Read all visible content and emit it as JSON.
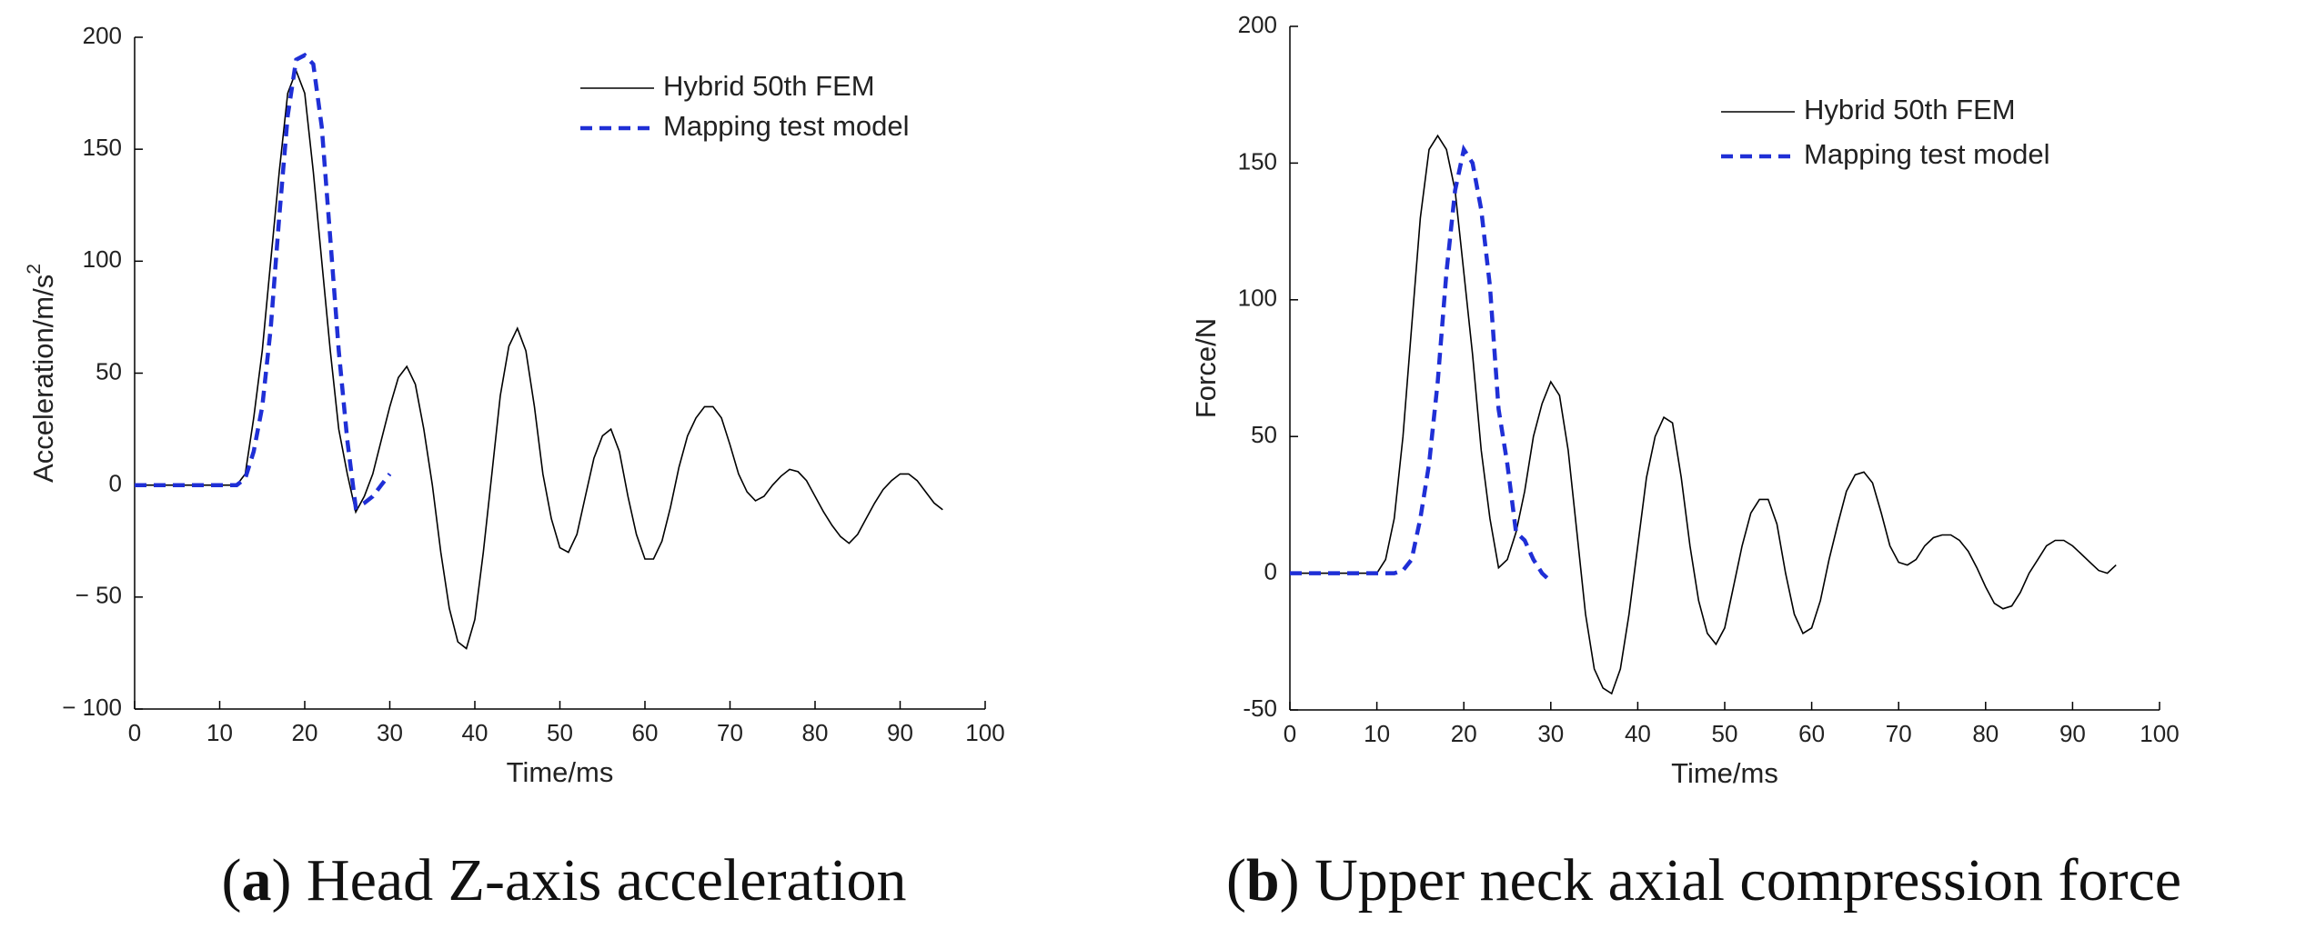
{
  "chart_data": [
    {
      "type": "line",
      "caption": [
        "(",
        "a",
        ") Head Z-axis acceleration"
      ],
      "xlabel": "Time/ms",
      "ylabel": [
        "Acceleration/m/s",
        "2"
      ],
      "xlim": [
        0,
        100
      ],
      "xticks": [
        0,
        10,
        20,
        30,
        40,
        50,
        60,
        70,
        80,
        90,
        100
      ],
      "ylim": [
        -100,
        200
      ],
      "yticks": [
        {
          "value": -100,
          "label": "− 100"
        },
        {
          "value": -50,
          "label": "− 50"
        },
        0,
        50,
        100,
        150,
        200
      ],
      "legend": "upper right",
      "series": [
        {
          "name": "Hybrid 50th FEM",
          "color": "#000000",
          "dash": false,
          "x": [
            0,
            1,
            2,
            3,
            4,
            5,
            6,
            7,
            8,
            9,
            10,
            11,
            12,
            13,
            14,
            15,
            16,
            17,
            18,
            19,
            20,
            21,
            22,
            23,
            24,
            25,
            26,
            27,
            28,
            29,
            30,
            31,
            32,
            33,
            34,
            35,
            36,
            37,
            38,
            39,
            40,
            41,
            42,
            43,
            44,
            45,
            46,
            47,
            48,
            49,
            50,
            51,
            52,
            53,
            54,
            55,
            56,
            57,
            58,
            59,
            60,
            61,
            62,
            63,
            64,
            65,
            66,
            67,
            68,
            69,
            70,
            71,
            72,
            73,
            74,
            75,
            76,
            77,
            78,
            79,
            80,
            81,
            82,
            83,
            84,
            85,
            86,
            87,
            88,
            89,
            90,
            91,
            92,
            93,
            94,
            95
          ],
          "values": [
            0,
            0,
            0,
            0,
            0,
            0,
            0,
            0,
            0,
            0,
            0,
            0,
            0,
            5,
            30,
            60,
            100,
            140,
            175,
            185,
            175,
            140,
            100,
            60,
            25,
            5,
            -12,
            -5,
            5,
            20,
            35,
            48,
            53,
            45,
            25,
            0,
            -30,
            -55,
            -70,
            -73,
            -60,
            -30,
            5,
            40,
            62,
            70,
            60,
            35,
            5,
            -15,
            -28,
            -30,
            -22,
            -5,
            12,
            22,
            25,
            15,
            -5,
            -22,
            -33,
            -33,
            -25,
            -10,
            8,
            22,
            30,
            35,
            35,
            30,
            18,
            5,
            -3,
            -7,
            -5,
            0,
            4,
            7,
            6,
            2,
            -5,
            -12,
            -18,
            -23,
            -26,
            -22,
            -15,
            -8,
            -2,
            2,
            5,
            5,
            2,
            -3,
            -8,
            -11
          ]
        },
        {
          "name": "Mapping test model",
          "color": "#1f2fd6",
          "dash": true,
          "x": [
            0,
            1,
            2,
            3,
            4,
            5,
            6,
            7,
            8,
            9,
            10,
            11,
            12,
            13,
            14,
            15,
            16,
            17,
            18,
            19,
            20,
            21,
            22,
            23,
            24,
            25,
            26,
            27,
            28,
            29,
            30
          ],
          "values": [
            0,
            0,
            0,
            0,
            0,
            0,
            0,
            0,
            0,
            0,
            0,
            0,
            0,
            3,
            15,
            35,
            70,
            120,
            165,
            190,
            192,
            188,
            160,
            110,
            60,
            20,
            -10,
            -8,
            -5,
            0,
            5
          ]
        }
      ]
    },
    {
      "type": "line",
      "caption": [
        "(",
        "b",
        ") Upper neck axial compression force"
      ],
      "xlabel": "Time/ms",
      "ylabel": [
        "Force/N"
      ],
      "xlim": [
        0,
        100
      ],
      "xticks": [
        0,
        10,
        20,
        30,
        40,
        50,
        60,
        70,
        80,
        90,
        100
      ],
      "ylim": [
        -50,
        200
      ],
      "yticks": [
        -50,
        0,
        50,
        100,
        150,
        200
      ],
      "legend": "upper right",
      "series": [
        {
          "name": "Hybrid 50th FEM",
          "color": "#000000",
          "dash": false,
          "x": [
            0,
            1,
            2,
            3,
            4,
            5,
            6,
            7,
            8,
            9,
            10,
            11,
            12,
            13,
            14,
            15,
            16,
            17,
            18,
            19,
            20,
            21,
            22,
            23,
            24,
            25,
            26,
            27,
            28,
            29,
            30,
            31,
            32,
            33,
            34,
            35,
            36,
            37,
            38,
            39,
            40,
            41,
            42,
            43,
            44,
            45,
            46,
            47,
            48,
            49,
            50,
            51,
            52,
            53,
            54,
            55,
            56,
            57,
            58,
            59,
            60,
            61,
            62,
            63,
            64,
            65,
            66,
            67,
            68,
            69,
            70,
            71,
            72,
            73,
            74,
            75,
            76,
            77,
            78,
            79,
            80,
            81,
            82,
            83,
            84,
            85,
            86,
            87,
            88,
            89,
            90,
            91,
            92,
            93,
            94,
            95
          ],
          "values": [
            0,
            0,
            0,
            0,
            0,
            0,
            0,
            0,
            0,
            0,
            0,
            5,
            20,
            50,
            90,
            130,
            155,
            160,
            155,
            140,
            110,
            80,
            45,
            20,
            2,
            5,
            15,
            30,
            50,
            62,
            70,
            65,
            45,
            15,
            -15,
            -35,
            -42,
            -44,
            -35,
            -15,
            10,
            35,
            50,
            57,
            55,
            35,
            10,
            -10,
            -22,
            -26,
            -20,
            -5,
            10,
            22,
            27,
            27,
            18,
            0,
            -15,
            -22,
            -20,
            -10,
            5,
            18,
            30,
            36,
            37,
            33,
            22,
            10,
            4,
            3,
            5,
            10,
            13,
            14,
            14,
            12,
            8,
            2,
            -5,
            -11,
            -13,
            -12,
            -7,
            0,
            5,
            10,
            12,
            12,
            10,
            7,
            4,
            1,
            0,
            3
          ]
        },
        {
          "name": "Mapping test model",
          "color": "#1f2fd6",
          "dash": true,
          "x": [
            0,
            1,
            2,
            3,
            4,
            5,
            6,
            7,
            8,
            9,
            10,
            11,
            12,
            13,
            14,
            15,
            16,
            17,
            18,
            19,
            20,
            21,
            22,
            23,
            24,
            25,
            26,
            27,
            28,
            29,
            30
          ],
          "values": [
            0,
            0,
            0,
            0,
            0,
            0,
            0,
            0,
            0,
            0,
            0,
            0,
            0,
            1,
            5,
            20,
            40,
            70,
            110,
            140,
            155,
            150,
            133,
            105,
            60,
            40,
            15,
            12,
            5,
            0,
            -3
          ]
        }
      ]
    }
  ]
}
